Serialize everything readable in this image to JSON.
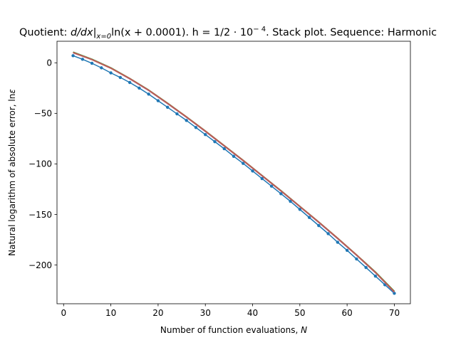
{
  "chart_data": {
    "type": "line",
    "title": "Quotient: d/dx|x=0 ln(x + 0.0001). h = 1/2 · 10⁻⁴. Stack plot. Sequence: Harmonic",
    "title_parts": {
      "a": "Quotient: ",
      "b": "d/dx|",
      "c": "x=0",
      "d": "ln(x + 0.0001). h = 1/2 · 10",
      "e": "− 4",
      "f": ". Stack plot. Sequence: Harmonic"
    },
    "xlabel": "Number of function evaluations, N",
    "xlabel_parts": {
      "a": "Number of function evaluations, ",
      "b": "N"
    },
    "ylabel": "Natural logarithm of absolute error, lnε",
    "ylabel_parts": {
      "a": "Natural logarithm of absolute error, ln",
      "b": "ε"
    },
    "xlim": [
      -1.4,
      73.4
    ],
    "ylim": [
      -238.3,
      21.3
    ],
    "xticks": [
      0,
      10,
      20,
      30,
      40,
      50,
      60,
      70
    ],
    "yticks": [
      0,
      -50,
      -100,
      -150,
      -200
    ],
    "ytick_labels": [
      "0",
      "−50",
      "−100",
      "−150",
      "−200"
    ],
    "grid": false,
    "legend": "none",
    "series": [
      {
        "name": "data (markers + line)",
        "color": "#1f77b4",
        "style": "line-markers",
        "x": [
          2,
          4,
          6,
          8,
          10,
          12,
          14,
          16,
          18,
          20,
          22,
          24,
          26,
          28,
          30,
          32,
          34,
          36,
          38,
          40,
          42,
          44,
          46,
          48,
          50,
          52,
          54,
          56,
          58,
          60,
          62,
          64,
          66,
          68,
          70
        ],
        "y": [
          7,
          3.5,
          -0.5,
          -5,
          -10,
          -14.5,
          -19.5,
          -25,
          -31,
          -37.5,
          -44,
          -50.5,
          -57,
          -64,
          -71,
          -78,
          -85,
          -92.5,
          -99.5,
          -107,
          -114.5,
          -122,
          -129.5,
          -137,
          -145,
          -153,
          -161,
          -169,
          -177.5,
          -185.5,
          -194,
          -202.5,
          -211,
          -219.5,
          -228
        ]
      },
      {
        "name": "fit 1",
        "color": "#2ca02c",
        "style": "line",
        "x": [
          2,
          6,
          10,
          14,
          18,
          22,
          26,
          30,
          34,
          38,
          42,
          46,
          50,
          54,
          58,
          62,
          66,
          70
        ],
        "y": [
          10.5,
          3.5,
          -5,
          -15.5,
          -27,
          -40,
          -53.5,
          -67.5,
          -82,
          -96.5,
          -111.5,
          -126.5,
          -142,
          -157.5,
          -173.5,
          -190,
          -207,
          -226
        ]
      },
      {
        "name": "fit 2",
        "color": "#9467bd",
        "style": "line",
        "x": [
          2,
          6,
          10,
          14,
          18,
          22,
          26,
          30,
          34,
          38,
          42,
          46,
          50,
          54,
          58,
          62,
          66,
          70
        ],
        "y": [
          10,
          3.2,
          -5.3,
          -15.8,
          -27.3,
          -40.3,
          -53.8,
          -67.8,
          -82.3,
          -96.8,
          -111.8,
          -126.8,
          -142.3,
          -157.8,
          -173.8,
          -190.3,
          -207.5,
          -226.8
        ]
      },
      {
        "name": "fit 3",
        "color": "#bd5d52",
        "style": "line",
        "x": [
          2,
          6,
          10,
          14,
          18,
          22,
          26,
          30,
          34,
          38,
          42,
          46,
          50,
          54,
          58,
          62,
          66,
          70
        ],
        "y": [
          10.2,
          3.2,
          -5.3,
          -15.6,
          -27.1,
          -40.1,
          -53.6,
          -67.6,
          -82.1,
          -96.6,
          -111.6,
          -126.6,
          -142.1,
          -157.6,
          -173.6,
          -190.1,
          -207.3,
          -226.5
        ]
      }
    ]
  }
}
